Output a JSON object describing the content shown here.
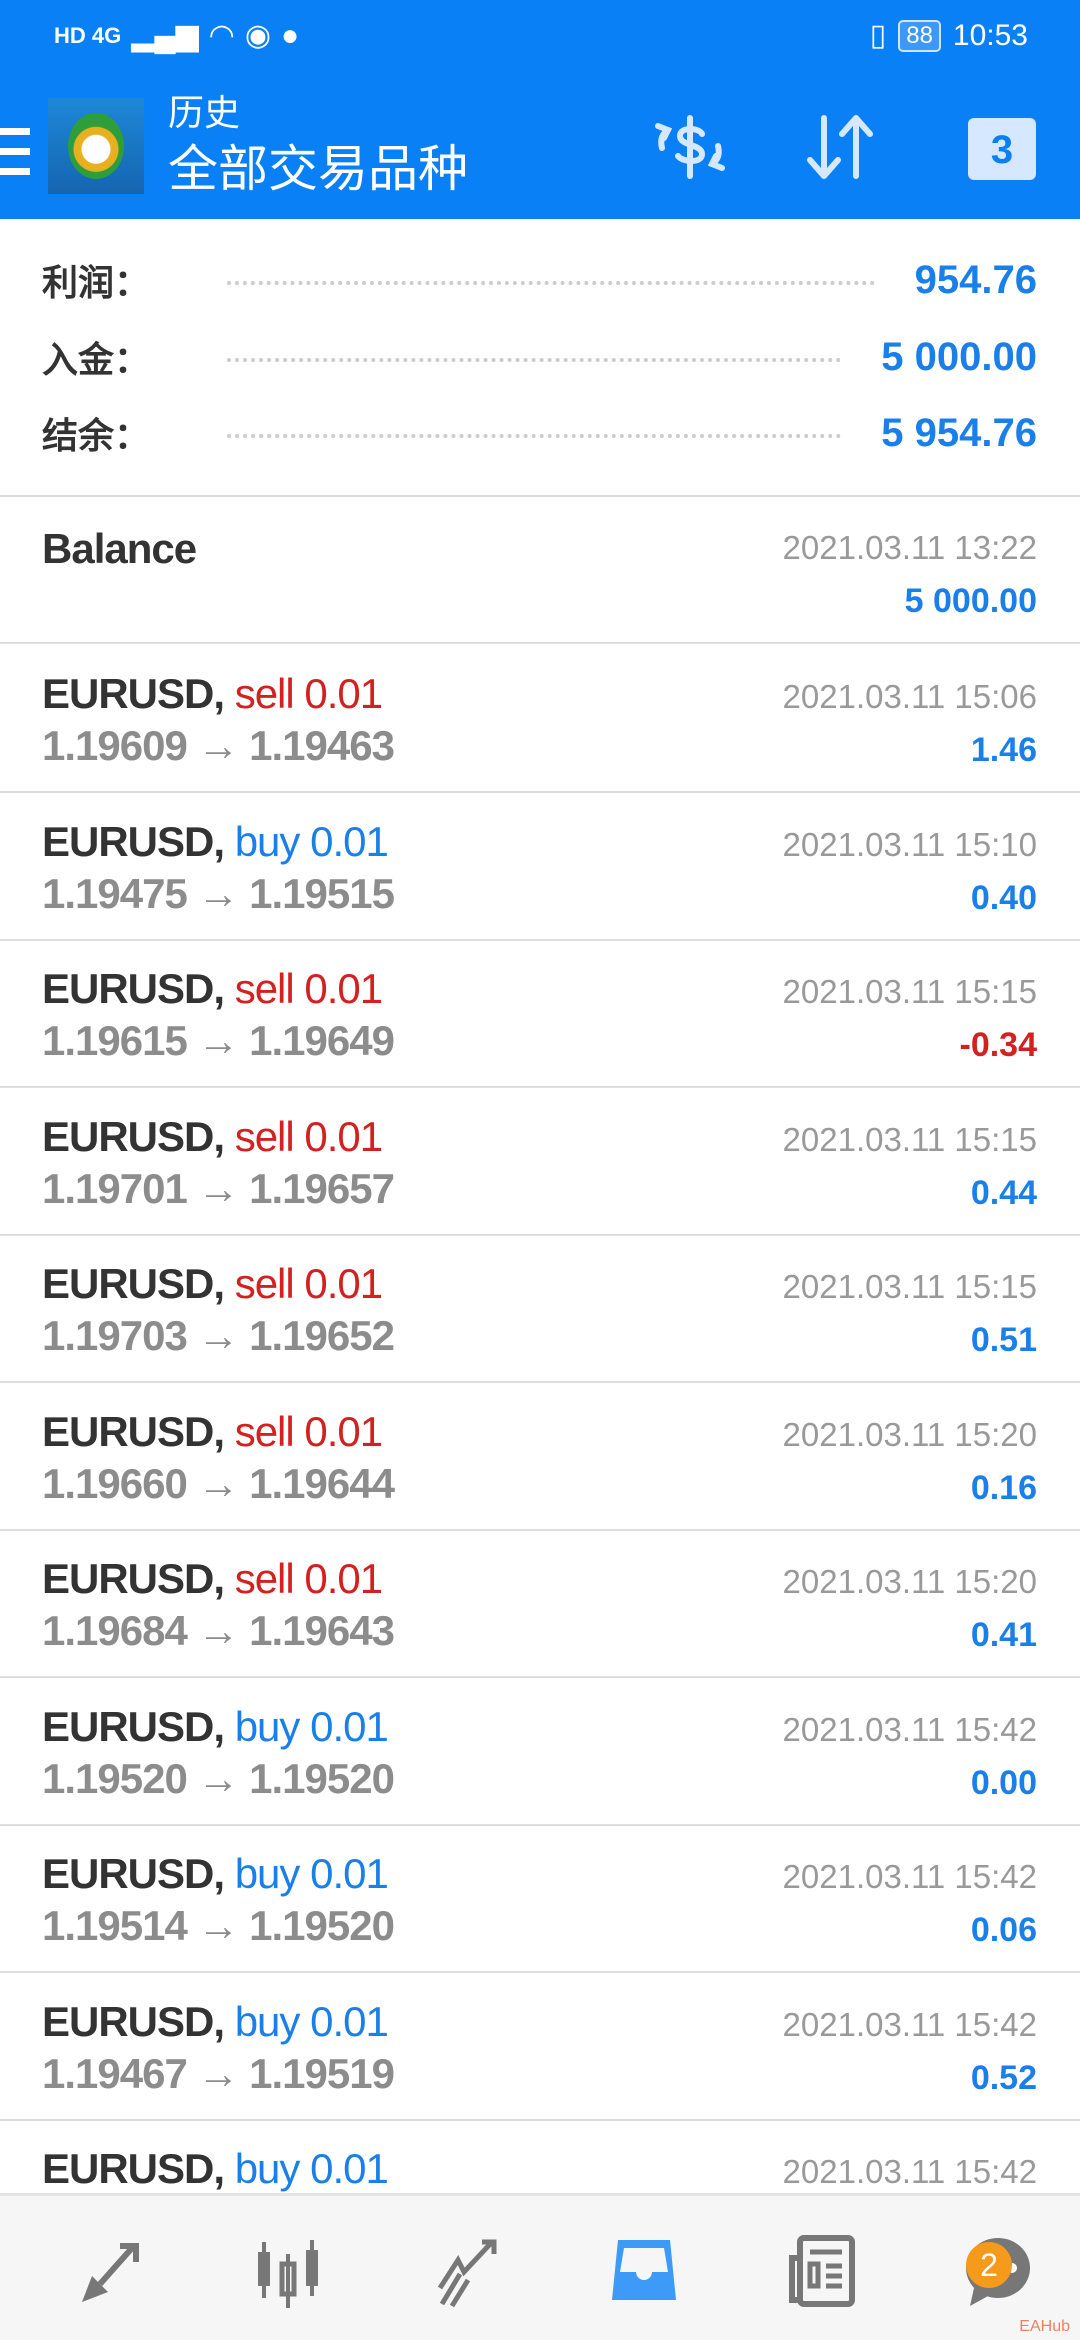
{
  "status_bar": {
    "left": "HD 4G",
    "time": "10:53",
    "battery": "88"
  },
  "header": {
    "title": "历史",
    "subtitle": "全部交易品种",
    "calendar_day": "3",
    "icons": [
      "menu-icon",
      "mt4-logo",
      "currency-exchange-icon",
      "sort-icon",
      "calendar-icon"
    ]
  },
  "summary": [
    {
      "label": "利润：",
      "value": "954.76"
    },
    {
      "label": "入金：",
      "value": "5 000.00"
    },
    {
      "label": "结余：",
      "value": "5 954.76"
    }
  ],
  "balance": {
    "label": "Balance",
    "date": "2021.03.11 13:22",
    "value": "5 000.00"
  },
  "trades": [
    {
      "symbol": "EURUSD,",
      "side": "sell",
      "volume": "0.01",
      "prices": "1.19609 → 1.19463",
      "date": "2021.03.11 15:06",
      "profit": "1.46"
    },
    {
      "symbol": "EURUSD,",
      "side": "buy",
      "volume": "0.01",
      "prices": "1.19475 → 1.19515",
      "date": "2021.03.11 15:10",
      "profit": "0.40"
    },
    {
      "symbol": "EURUSD,",
      "side": "sell",
      "volume": "0.01",
      "prices": "1.19615 → 1.19649",
      "date": "2021.03.11 15:15",
      "profit": "-0.34"
    },
    {
      "symbol": "EURUSD,",
      "side": "sell",
      "volume": "0.01",
      "prices": "1.19701 → 1.19657",
      "date": "2021.03.11 15:15",
      "profit": "0.44"
    },
    {
      "symbol": "EURUSD,",
      "side": "sell",
      "volume": "0.01",
      "prices": "1.19703 → 1.19652",
      "date": "2021.03.11 15:15",
      "profit": "0.51"
    },
    {
      "symbol": "EURUSD,",
      "side": "sell",
      "volume": "0.01",
      "prices": "1.19660 → 1.19644",
      "date": "2021.03.11 15:20",
      "profit": "0.16"
    },
    {
      "symbol": "EURUSD,",
      "side": "sell",
      "volume": "0.01",
      "prices": "1.19684 → 1.19643",
      "date": "2021.03.11 15:20",
      "profit": "0.41"
    },
    {
      "symbol": "EURUSD,",
      "side": "buy",
      "volume": "0.01",
      "prices": "1.19520 → 1.19520",
      "date": "2021.03.11 15:42",
      "profit": "0.00"
    },
    {
      "symbol": "EURUSD,",
      "side": "buy",
      "volume": "0.01",
      "prices": "1.19514 → 1.19520",
      "date": "2021.03.11 15:42",
      "profit": "0.06"
    },
    {
      "symbol": "EURUSD,",
      "side": "buy",
      "volume": "0.01",
      "prices": "1.19467 → 1.19519",
      "date": "2021.03.11 15:42",
      "profit": "0.52"
    },
    {
      "symbol": "EURUSD,",
      "side": "buy",
      "volume": "0.01",
      "prices": "",
      "date": "2021.03.11 15:42",
      "profit": ""
    }
  ],
  "nav": {
    "items": [
      "trade-icon",
      "quotes-chart-icon",
      "analytics-icon",
      "history-icon",
      "news-icon",
      "chat-icon"
    ],
    "active": "history-icon",
    "chat_badge": "2"
  },
  "watermark": "EAHub",
  "colors": {
    "header": "#0a80f6",
    "positive": "#1a7fe8",
    "negative": "#d32121"
  }
}
